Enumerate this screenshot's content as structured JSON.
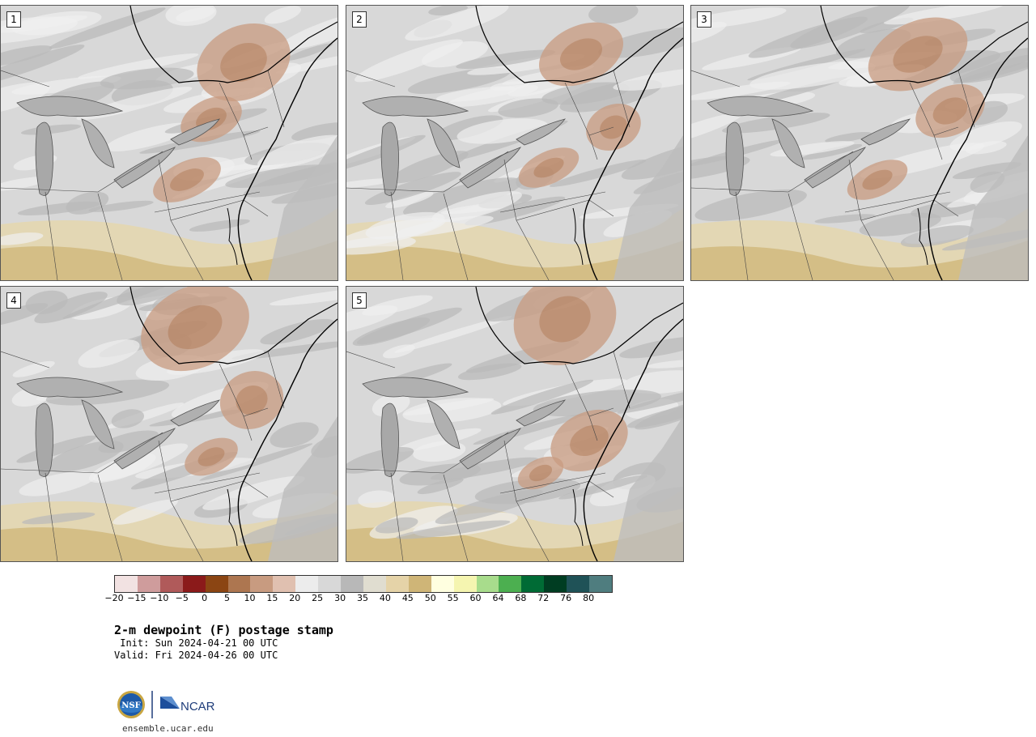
{
  "panels": [
    {
      "label": "1"
    },
    {
      "label": "2"
    },
    {
      "label": "3"
    },
    {
      "label": "4"
    },
    {
      "label": "5"
    }
  ],
  "colorbar": {
    "colors": [
      "#f2e2e2",
      "#cf9c9c",
      "#b05a5a",
      "#8b1a1a",
      "#8b4513",
      "#ad7650",
      "#c89b80",
      "#e0c0b0",
      "#ececec",
      "#d8d8d8",
      "#b8b8b8",
      "#e0ddd0",
      "#e5d3a8",
      "#cfb577",
      "#ffffe0",
      "#f5f5b0",
      "#a8dc8c",
      "#4caf50",
      "#006b35",
      "#003d22",
      "#1f5257",
      "#4f7d7f"
    ],
    "ticks": [
      "−20",
      "−15",
      "−10",
      "−5",
      "0",
      "5",
      "10",
      "15",
      "20",
      "25",
      "30",
      "35",
      "40",
      "45",
      "50",
      "55",
      "60",
      "64",
      "68",
      "72",
      "76",
      "80"
    ]
  },
  "title": "2-m dewpoint (F) postage stamp",
  "init": " Init: Sun 2024-04-21 00 UTC",
  "valid": "Valid: Fri 2024-04-26 00 UTC",
  "logo": {
    "left_text": "NSF",
    "right_text": "NCAR"
  },
  "url": "ensemble.ucar.edu"
}
